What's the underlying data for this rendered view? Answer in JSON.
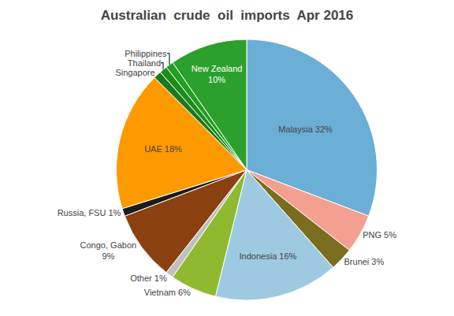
{
  "chart_data": {
    "type": "pie",
    "title": "Australian  crude  oil  imports  Apr 2016",
    "categories": [
      "Malaysia 32%",
      "PNG 5%",
      "Brunei 3%",
      "Indonesia 16%",
      "Vietnam 6%",
      "Other 1%",
      "Congo, Gabon\n9%",
      "Russia, FSU 1%",
      "UAE 18%",
      "Singapore",
      "Thailand",
      "Philippines",
      "New Zealand\n10%"
    ],
    "values": [
      32,
      5,
      3,
      16,
      6,
      1,
      9,
      1,
      18,
      1,
      1,
      1,
      10
    ],
    "colors": [
      "#6baed6",
      "#f4a090",
      "#7b6d20",
      "#9ecae1",
      "#8fba30",
      "#c0c0c0",
      "#8b4010",
      "#1c1c1c",
      "#ff9900",
      "#1a7a1a",
      "#1d8c1d",
      "#20a020",
      "#2ca02c"
    ]
  }
}
